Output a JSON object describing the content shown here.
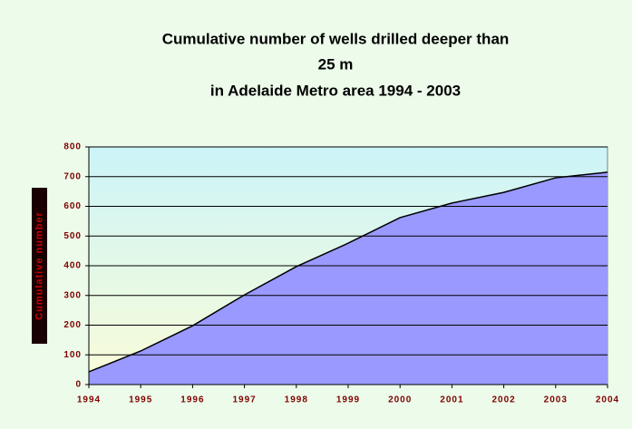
{
  "chart_data": {
    "type": "area",
    "title": [
      "Cumulative number of wells drilled deeper than",
      "25 m",
      "in Adelaide Metro area 1994 - 2003"
    ],
    "y_label": "Cumulative number",
    "x": [
      1994,
      1995,
      1996,
      1997,
      1998,
      1999,
      2000,
      2001,
      2002,
      2003,
      2004
    ],
    "values": [
      43,
      113,
      198,
      302,
      397,
      476,
      562,
      611,
      647,
      696,
      715
    ],
    "color": "#9999ff",
    "line_color": "#000000",
    "xlim": [
      1994,
      2004
    ],
    "xticks": [
      1994,
      1995,
      1996,
      1997,
      1998,
      1999,
      2000,
      2001,
      2002,
      2003,
      2004
    ],
    "ylim": [
      0,
      800
    ],
    "yticks": [
      0,
      100,
      200,
      300,
      400,
      500,
      600,
      700,
      800
    ],
    "grid": true
  }
}
